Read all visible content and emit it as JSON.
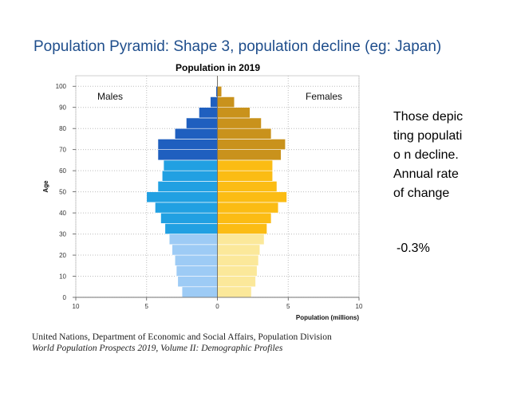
{
  "slide": {
    "title": "Population Pyramid: Shape 3,  population decline  (eg: Japan)",
    "side_text": "Those depicting populatio n decline. Annual rate of change",
    "side_value": "-0.3%",
    "source_line1": "United Nations, Department of Economic and Social Affairs, Population Division",
    "source_line2": "World Population Prospects 2019, Volume II: Demographic Profiles"
  },
  "chart_data": {
    "type": "bar",
    "orientation": "horizontal-pyramid",
    "title": "Population in 2019",
    "xlabel": "Population (millions)",
    "ylabel": "Age",
    "xlim": [
      -10,
      10
    ],
    "ylim": [
      0,
      105
    ],
    "x_ticks": [
      -10,
      -5,
      0,
      5,
      10
    ],
    "x_tick_labels": [
      "10",
      "5",
      "0",
      "5",
      "10"
    ],
    "y_ticks": [
      0,
      10,
      20,
      30,
      40,
      50,
      60,
      70,
      80,
      90,
      100
    ],
    "y_tick_labels": [
      "0",
      "10",
      "20",
      "30",
      "40",
      "50",
      "60",
      "70",
      "80",
      "90",
      "100"
    ],
    "grid": true,
    "age_groups": [
      "0-4",
      "5-9",
      "10-14",
      "15-19",
      "20-24",
      "25-29",
      "30-34",
      "35-39",
      "40-44",
      "45-49",
      "50-54",
      "55-59",
      "60-64",
      "65-69",
      "70-74",
      "75-79",
      "80-84",
      "85-89",
      "90-94",
      "95-99",
      "100+"
    ],
    "series": [
      {
        "name": "Males",
        "color_young": "#9dcbf5",
        "color_mid": "#21a0e2",
        "color_old": "#1f5fbf",
        "values": [
          2.5,
          2.8,
          2.9,
          3.0,
          3.2,
          3.4,
          3.7,
          4.0,
          4.4,
          5.0,
          4.2,
          3.9,
          3.8,
          4.2,
          4.2,
          3.0,
          2.2,
          1.3,
          0.5,
          0.1,
          0.0
        ]
      },
      {
        "name": "Females",
        "color_young": "#fbe89a",
        "color_mid": "#fbbc14",
        "color_old": "#c9921c",
        "values": [
          2.4,
          2.7,
          2.8,
          2.9,
          3.0,
          3.3,
          3.5,
          3.8,
          4.3,
          4.9,
          4.2,
          3.9,
          3.9,
          4.5,
          4.8,
          3.8,
          3.1,
          2.3,
          1.2,
          0.3,
          0.05
        ]
      }
    ]
  }
}
